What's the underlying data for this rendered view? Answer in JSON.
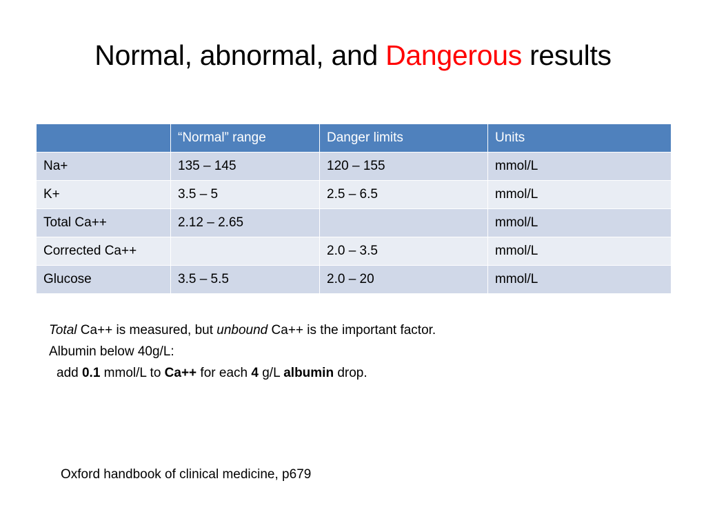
{
  "title": {
    "part1": "Normal, abnormal, and ",
    "accent": "Dangerous",
    "part2": " results",
    "accent_color": "#ff0000"
  },
  "table": {
    "header_color": "#4f81bd",
    "row_color_a": "#d0d8e8",
    "row_color_b": "#e9edf4",
    "headers": [
      "",
      "“Normal” range",
      "Danger limits",
      "Units"
    ],
    "rows": [
      [
        "Na+",
        "135 – 145",
        "120 – 155",
        "mmol/L"
      ],
      [
        "K+",
        "3.5 – 5",
        "2.5 – 6.5",
        "mmol/L"
      ],
      [
        "Total Ca++",
        "2.12 – 2.65",
        "",
        "mmol/L"
      ],
      [
        "Corrected Ca++",
        "",
        "2.0 – 3.5",
        "mmol/L"
      ],
      [
        "Glucose",
        "3.5 – 5.5",
        "2.0 – 20",
        "mmol/L"
      ]
    ]
  },
  "notes": {
    "line1": {
      "total": "Total",
      "t1": " Ca++ is measured, but ",
      "unbound": "unbound",
      "t2": " Ca++ is the important factor."
    },
    "line2": "Albumin below 40g/L:",
    "line3": {
      "a": "add ",
      "amount": "0.1",
      "b": " mmol/L to ",
      "ion": "Ca++",
      "c": " for each ",
      "per": "4",
      "d": " g/L ",
      "albumin": "albumin",
      "e": " drop."
    }
  },
  "citation": "Oxford handbook of clinical medicine, p679"
}
